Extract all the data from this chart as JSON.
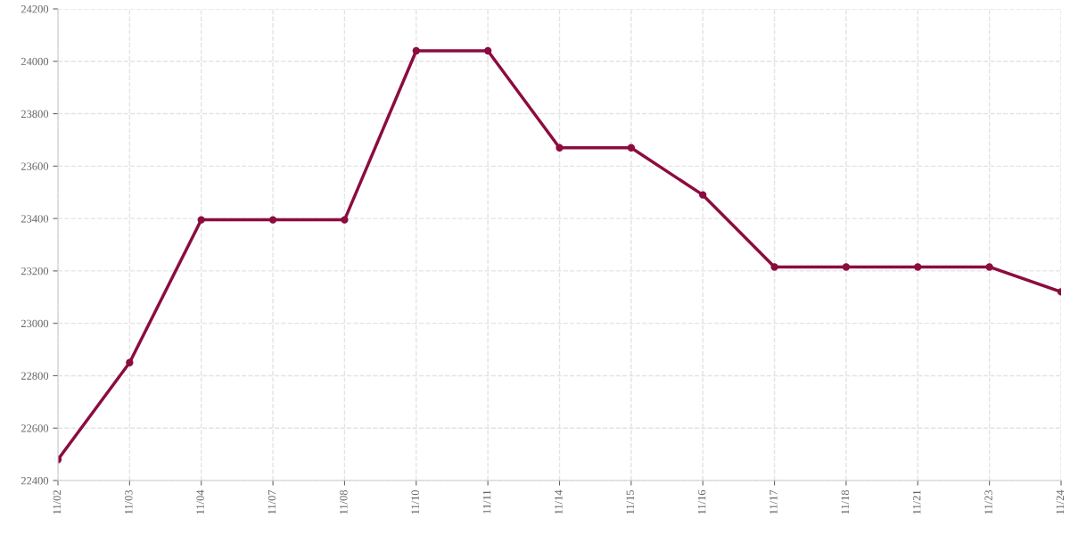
{
  "chart_data": {
    "type": "line",
    "categories": [
      "11/02",
      "11/03",
      "11/04",
      "11/07",
      "11/08",
      "11/10",
      "11/11",
      "11/14",
      "11/15",
      "11/16",
      "11/17",
      "11/18",
      "11/21",
      "11/23",
      "11/24"
    ],
    "series": [
      {
        "color": "#8c0c3f",
        "values": [
          22480,
          22850,
          23395,
          23395,
          23395,
          24040,
          24040,
          23670,
          23670,
          23490,
          23215,
          23215,
          23215,
          23215,
          23120
        ]
      }
    ],
    "ylim": [
      22400,
      24200
    ],
    "yticks": [
      22400,
      22600,
      22800,
      23000,
      23200,
      23400,
      23600,
      23800,
      24000,
      24200
    ],
    "grid": true,
    "marker": "circle",
    "line_style": "solid"
  }
}
